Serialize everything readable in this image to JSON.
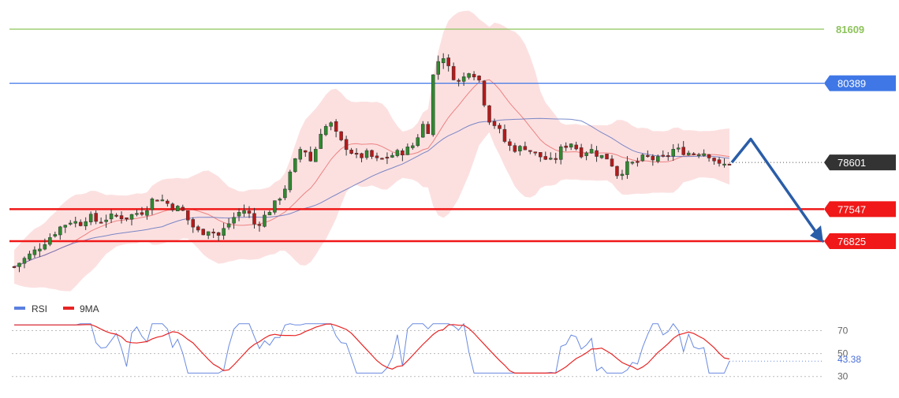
{
  "colors": {
    "resistance_top": "#8dc35b",
    "resistance_mid": "#3f77e6",
    "support": "#f01818",
    "last_price": "#333333",
    "candle_up": "#2f8a2f",
    "candle_down": "#b51a1a",
    "band_fill": "#f9c7c7",
    "ma_fast": "#e86a6a",
    "ma_slow": "#5a6fbf",
    "rsi_line": "#6a8ae0",
    "rsi_ma": "#e82424",
    "arrow": "#2a5da8"
  },
  "chart_data": [
    {
      "type": "line",
      "subtype": "candlestick-with-levels",
      "ylim": [
        76500,
        82000
      ],
      "levels": [
        {
          "label": "81609",
          "value": 81609,
          "kind": "resistance",
          "color": "#8dc35b"
        },
        {
          "label": "80389",
          "value": 80389,
          "kind": "resistance",
          "color": "#3f77e6"
        },
        {
          "label": "78601",
          "value": 78601,
          "kind": "last-price",
          "color": "#333333"
        },
        {
          "label": "77547",
          "value": 77547,
          "kind": "support",
          "color": "#f01818"
        },
        {
          "label": "76825",
          "value": 76825,
          "kind": "support",
          "color": "#f01818"
        }
      ],
      "projection": {
        "from": 78601,
        "peak": 78950,
        "to": 76825,
        "direction": "down"
      },
      "close_path": [
        [
          0,
          76250
        ],
        [
          5,
          76450
        ],
        [
          10,
          76650
        ],
        [
          15,
          76900
        ],
        [
          20,
          77150
        ],
        [
          25,
          77300
        ],
        [
          28,
          77200
        ],
        [
          32,
          77400
        ],
        [
          36,
          77250
        ],
        [
          40,
          77350
        ],
        [
          44,
          77400
        ],
        [
          48,
          77350
        ],
        [
          52,
          77450
        ],
        [
          56,
          77500
        ],
        [
          60,
          77800
        ],
        [
          64,
          77750
        ],
        [
          68,
          77600
        ],
        [
          72,
          77550
        ],
        [
          76,
          77200
        ],
        [
          80,
          77000
        ],
        [
          84,
          77100
        ],
        [
          88,
          76950
        ],
        [
          92,
          77200
        ],
        [
          96,
          77450
        ],
        [
          100,
          77550
        ],
        [
          104,
          77150
        ],
        [
          108,
          77400
        ],
        [
          112,
          77650
        ],
        [
          116,
          77950
        ],
        [
          120,
          78500
        ],
        [
          124,
          79000
        ],
        [
          128,
          78600
        ],
        [
          132,
          79300
        ],
        [
          136,
          79500
        ],
        [
          140,
          79100
        ],
        [
          144,
          78900
        ],
        [
          148,
          78700
        ],
        [
          152,
          78800
        ],
        [
          156,
          78650
        ],
        [
          160,
          78700
        ],
        [
          164,
          78800
        ],
        [
          168,
          78850
        ],
        [
          172,
          79000
        ],
        [
          176,
          79450
        ],
        [
          178,
          79200
        ],
        [
          180,
          80500
        ],
        [
          184,
          81100
        ],
        [
          188,
          80600
        ],
        [
          192,
          80400
        ],
        [
          196,
          80700
        ],
        [
          200,
          80500
        ],
        [
          204,
          79600
        ],
        [
          208,
          79400
        ],
        [
          212,
          79000
        ],
        [
          216,
          78900
        ],
        [
          220,
          78950
        ],
        [
          224,
          78800
        ],
        [
          228,
          78700
        ],
        [
          232,
          78600
        ],
        [
          236,
          78950
        ],
        [
          240,
          79050
        ],
        [
          244,
          78800
        ],
        [
          248,
          78900
        ],
        [
          252,
          78750
        ],
        [
          256,
          78700
        ],
        [
          260,
          78300
        ],
        [
          264,
          78550
        ],
        [
          268,
          78600
        ],
        [
          272,
          78750
        ],
        [
          276,
          78650
        ],
        [
          280,
          78700
        ],
        [
          284,
          78900
        ],
        [
          288,
          78850
        ],
        [
          292,
          78800
        ],
        [
          296,
          78850
        ],
        [
          300,
          78750
        ],
        [
          304,
          78500
        ],
        [
          308,
          78600
        ]
      ]
    },
    {
      "type": "line",
      "legend": [
        {
          "name": "RSI"
        },
        {
          "name": "9MA"
        }
      ],
      "ylim": [
        25,
        80
      ],
      "ticks": [
        {
          "label": "70",
          "value": 70
        },
        {
          "label": "50",
          "value": 50
        },
        {
          "label": "30",
          "value": 30
        }
      ],
      "last_value_label": "43.38",
      "last_value": 43.38
    }
  ]
}
